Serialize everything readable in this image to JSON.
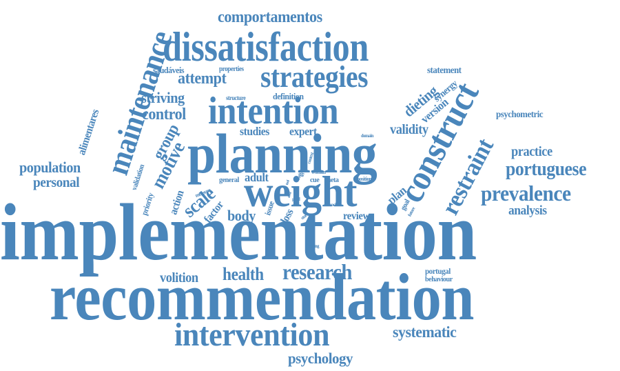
{
  "wordcloud": {
    "color": "#4a86bb",
    "words": {
      "implementation": "implementation",
      "recommendation": "recommendation",
      "planning": "planning",
      "weight": "weight",
      "intention": "intention",
      "dissatisfaction": "dissatisfaction",
      "strategies": "strategies",
      "intervention": "intervention",
      "construct": "construct",
      "restraint": "restraint",
      "maintenance": "maintenance",
      "prevalence": "prevalence",
      "portuguese": "portuguese",
      "research": "research",
      "systematic": "systematic",
      "psychology": "psychology",
      "comportamentos": "comportamentos",
      "attempt": "attempt",
      "striving": "striving",
      "control": "control",
      "motive": "motive",
      "group": "group",
      "alimentares": "alimentares",
      "population": "population",
      "personal": "personal",
      "scale": "scale",
      "factor": "factor",
      "action": "action",
      "body": "body",
      "loss": "loss",
      "issue": "issue",
      "adult": "adult",
      "general": "general",
      "health": "health",
      "volition": "volition",
      "review": "review",
      "plan": "plan",
      "goal": "goal",
      "validity": "validity",
      "dieting": "dieting",
      "version": "version",
      "synergy": "synergy",
      "statement": "statement",
      "psychometric": "psychometric",
      "practice": "practice",
      "analysis": "analysis",
      "expert": "expert",
      "studies": "studies",
      "definition": "definition",
      "structure": "structure",
      "properties": "properties",
      "saudaveis": "saudáveis",
      "validation": "validation",
      "priority": "priority",
      "measure": "measure",
      "cue": "cue",
      "meta": "meta",
      "woman": "woman",
      "position": "position",
      "domain": "domain",
      "context": "context",
      "rating": "rating",
      "good": "good",
      "study": "study",
      "social": "social",
      "future": "future",
      "testing": "testing",
      "portugal": "portugal",
      "behaviour": "behaviour",
      "tool": "tool",
      "area": "area",
      "ter": "ter"
    }
  }
}
